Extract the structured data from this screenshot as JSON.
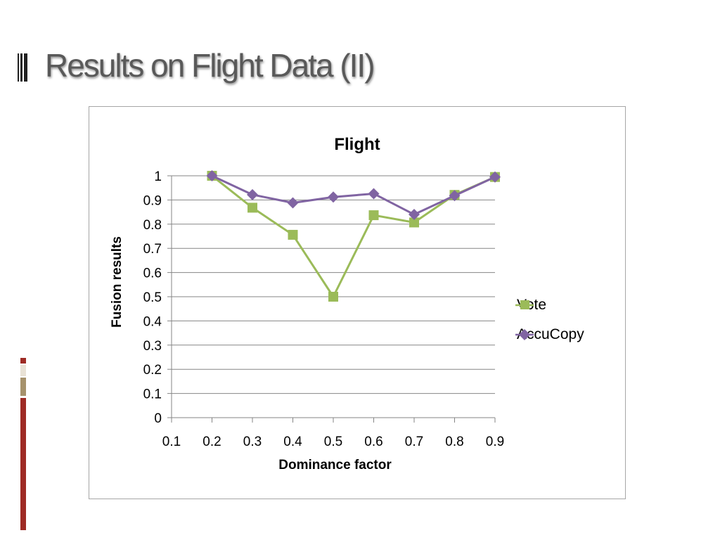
{
  "slide": {
    "title": "Results on Flight Data (II)",
    "accent_colors": [
      "#9e2b25",
      "#e9e2d6",
      "#a6926c"
    ]
  },
  "chart_data": {
    "type": "line",
    "title": "Flight",
    "xlabel": "Dominance factor",
    "ylabel": "Fusion results",
    "x_ticks": [
      "0.1",
      "0.2",
      "0.3",
      "0.4",
      "0.5",
      "0.6",
      "0.7",
      "0.8",
      "0.9"
    ],
    "y_ticks": [
      "0",
      "0.1",
      "0.2",
      "0.3",
      "0.4",
      "0.5",
      "0.6",
      "0.7",
      "0.8",
      "0.9",
      "1"
    ],
    "ylim": [
      0,
      1
    ],
    "grid": "horizontal",
    "legend_position": "right",
    "series": [
      {
        "name": "Vote",
        "color": "#9bbb59",
        "marker": "square",
        "x": [
          0.2,
          0.3,
          0.4,
          0.5,
          0.6,
          0.7,
          0.8,
          0.9
        ],
        "values": [
          1.0,
          0.868,
          0.756,
          0.5,
          0.837,
          0.807,
          0.921,
          0.995
        ]
      },
      {
        "name": "AccuCopy",
        "color": "#8064a2",
        "marker": "diamond",
        "x": [
          0.2,
          0.3,
          0.4,
          0.5,
          0.6,
          0.7,
          0.8,
          0.9
        ],
        "values": [
          1.0,
          0.922,
          0.888,
          0.912,
          0.926,
          0.84,
          0.918,
          0.995
        ]
      }
    ]
  }
}
